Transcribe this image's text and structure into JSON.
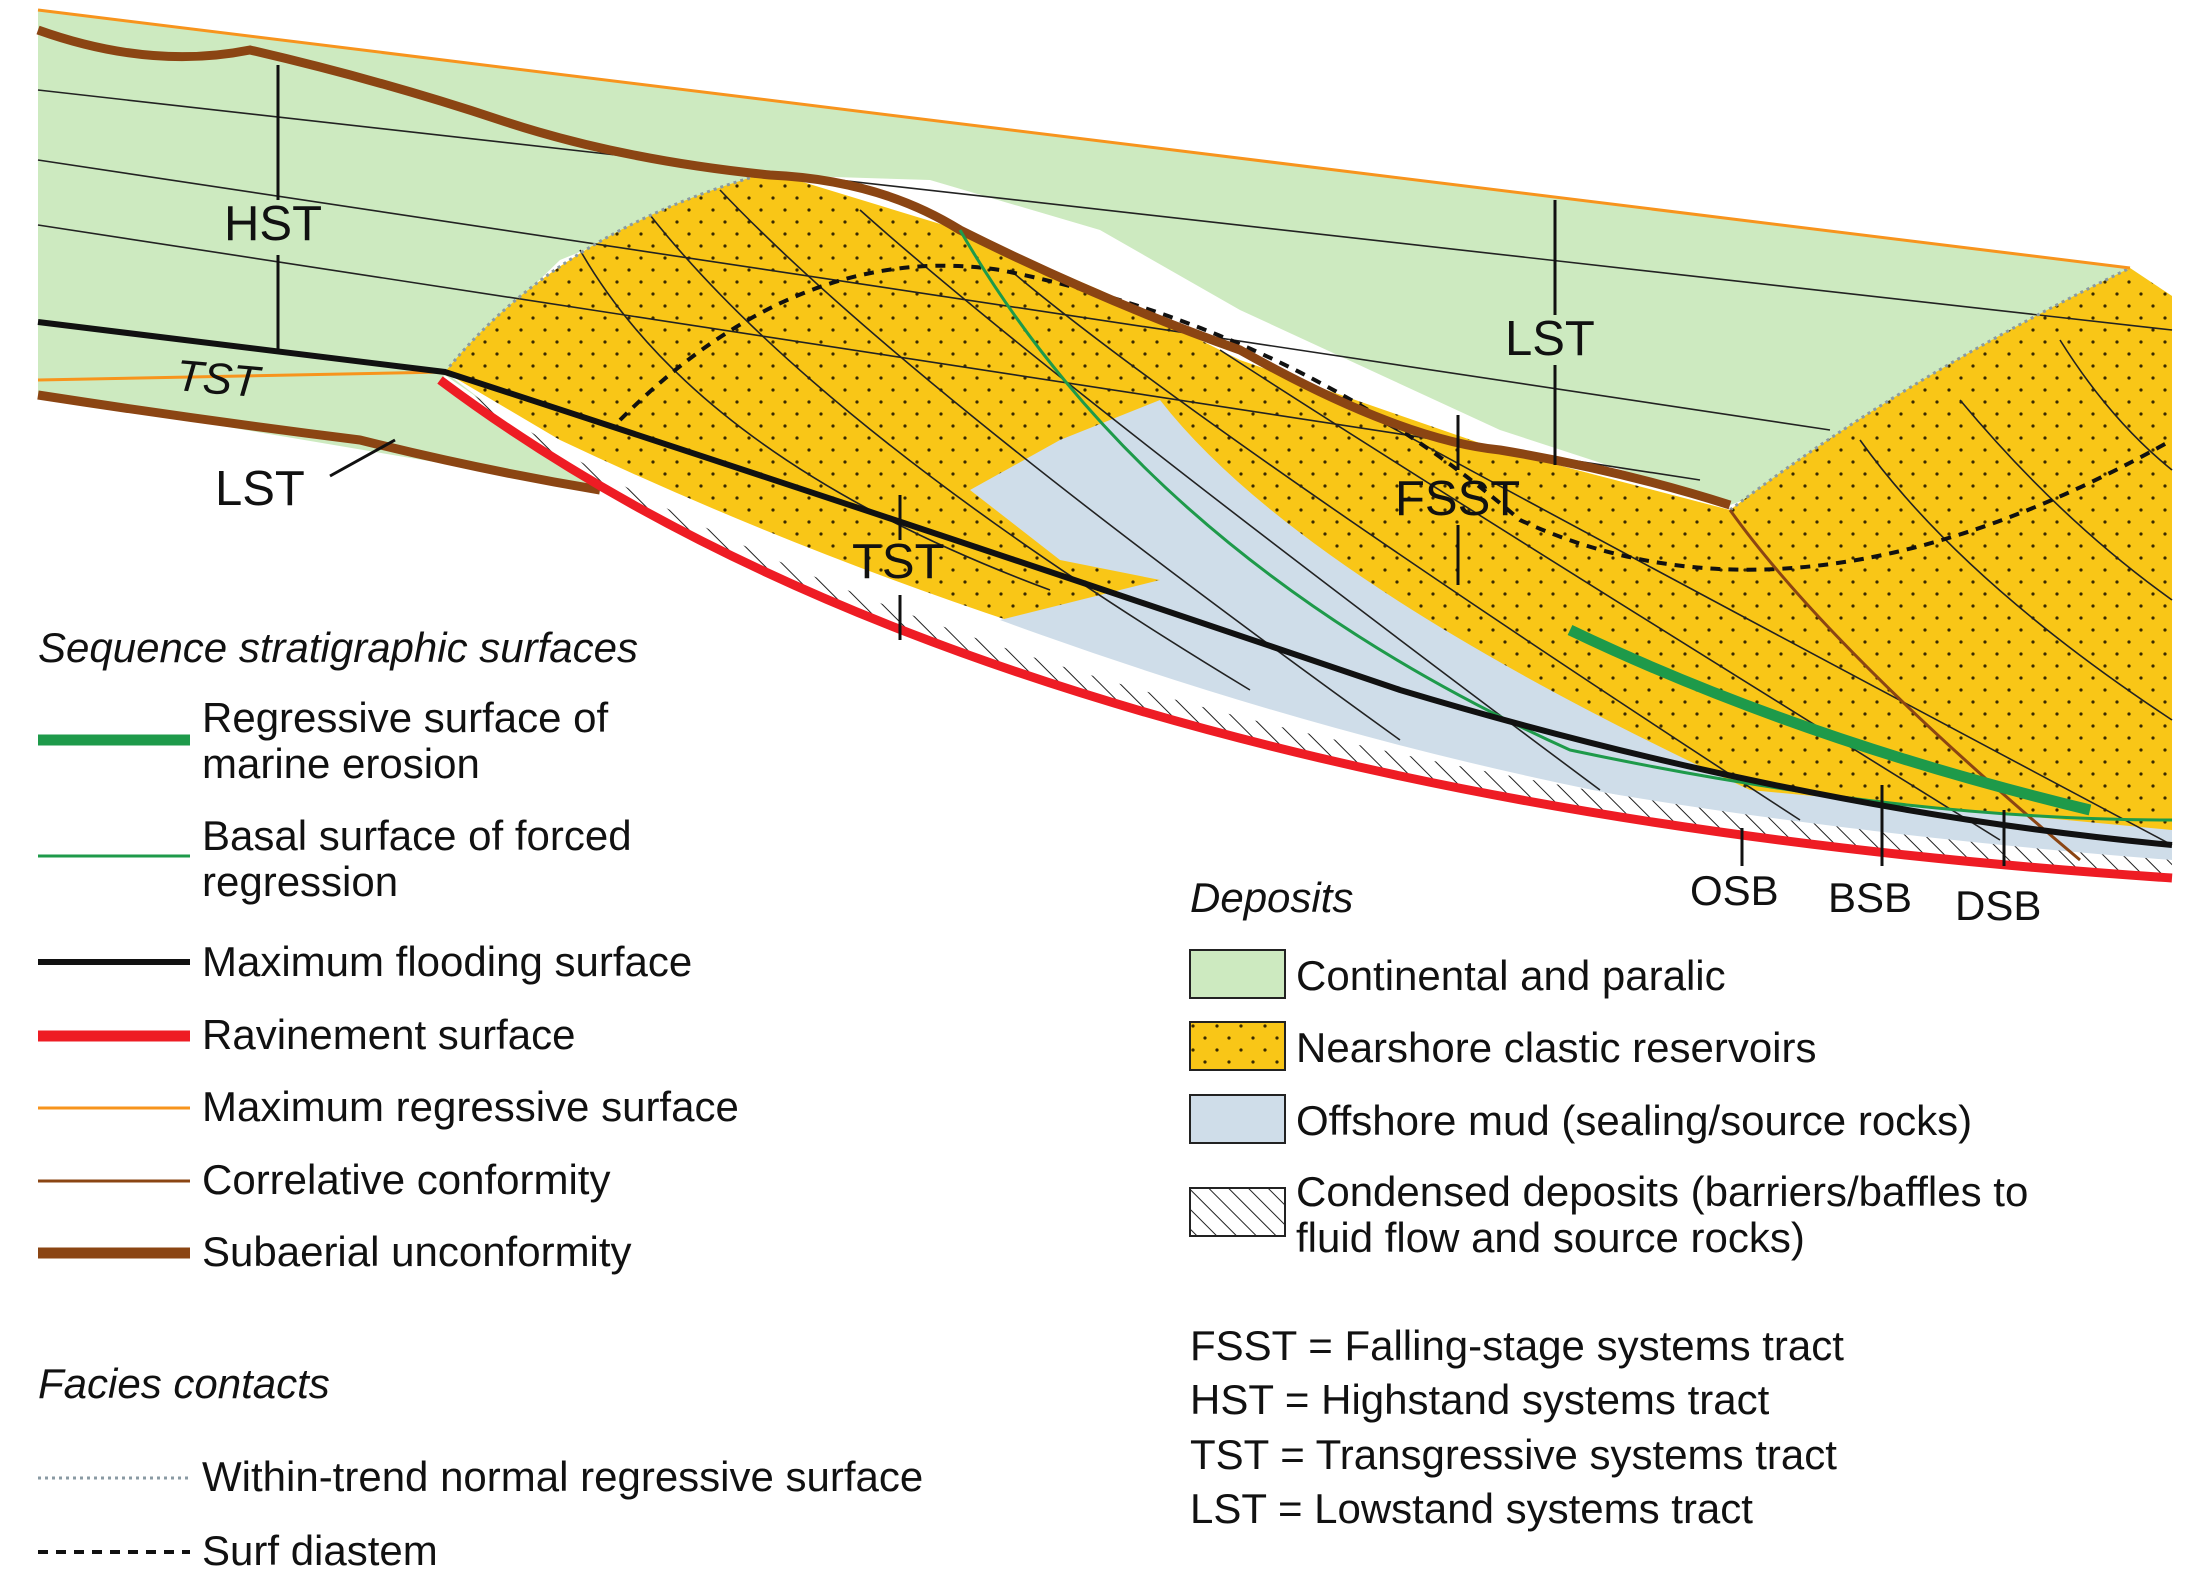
{
  "diagram": {
    "labels": {
      "hst": "HST",
      "tst_left": "TST",
      "lst_left": "LST",
      "tst_center": "TST",
      "fsst": "FSST",
      "lst_right": "LST",
      "osb": "OSB",
      "bsb": "BSB",
      "dsb": "DSB"
    }
  },
  "legend_surfaces": {
    "heading": "Sequence stratigraphic surfaces",
    "items": [
      {
        "line1": "Regressive surface of",
        "line2": "marine erosion",
        "color": "#1e9a4a",
        "style": "thick"
      },
      {
        "line1": "Basal surface of forced",
        "line2": "regression",
        "color": "#1e9a4a",
        "style": "thin"
      },
      {
        "line1": "Maximum flooding surface",
        "line2": "",
        "color": "#111111",
        "style": "medium"
      },
      {
        "line1": "Ravinement surface",
        "line2": "",
        "color": "#ee1c24",
        "style": "thick"
      },
      {
        "line1": "Maximum regressive surface",
        "line2": "",
        "color": "#f7941d",
        "style": "thin"
      },
      {
        "line1": "Correlative conformity",
        "line2": "",
        "color": "#8b4513",
        "style": "thin"
      },
      {
        "line1": "Subaerial unconformity",
        "line2": "",
        "color": "#8b4513",
        "style": "thick"
      }
    ]
  },
  "legend_facies": {
    "heading": "Facies contacts",
    "items": [
      {
        "label": "Within-trend normal regressive surface",
        "color": "#8a9aa3",
        "style": "dotted"
      },
      {
        "label": "Surf diastem",
        "color": "#111111",
        "style": "dashed"
      }
    ]
  },
  "legend_deposits": {
    "heading": "Deposits",
    "items": [
      {
        "line1": "Continental and paralic",
        "line2": "",
        "fill": "#cdeac0",
        "pattern": "none"
      },
      {
        "line1": "Nearshore clastic reservoirs",
        "line2": "",
        "fill": "#f9c617",
        "pattern": "dots"
      },
      {
        "line1": "Offshore mud (sealing/source rocks)",
        "line2": "",
        "fill": "#cfdde9",
        "pattern": "none"
      },
      {
        "line1": "Condensed deposits (barriers/baffles to",
        "line2": "fluid flow and source rocks)",
        "fill": "#ffffff",
        "pattern": "hatch"
      }
    ]
  },
  "abbreviations": [
    "FSST = Falling-stage systems tract",
    "HST = Highstand systems tract",
    "TST = Transgressive systems tract",
    "LST = Lowstand systems tract"
  ],
  "colors": {
    "continental": "#cdeac0",
    "nearshore": "#f9c617",
    "offshore_mud": "#cfdde9",
    "ravinement": "#ee1c24",
    "unconformity": "#8b4513",
    "max_regressive": "#f7941d",
    "rsme": "#1e9a4a"
  }
}
